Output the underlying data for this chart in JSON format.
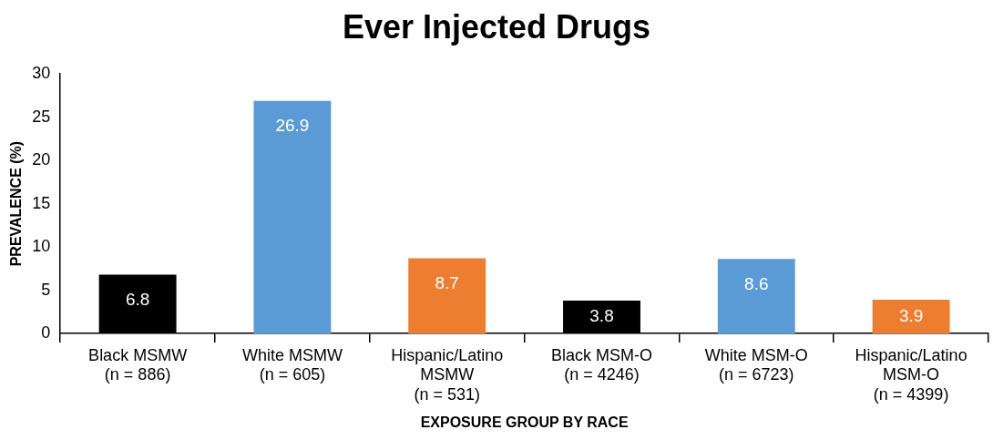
{
  "chart_data": {
    "type": "bar",
    "title": "Ever Injected Drugs",
    "xlabel": "EXPOSURE GROUP BY RACE",
    "ylabel": "PREVALENCE (%)",
    "categories": [
      "Black MSMW\n(n = 886)",
      "White MSMW\n(n = 605)",
      "Hispanic/Latino\nMSMW\n(n = 531)",
      "Black MSM-O\n(n = 4246)",
      "White MSM-O\n(n = 6723)",
      "Hispanic/Latino\nMSM-O\n(n = 4399)"
    ],
    "values": [
      6.8,
      26.9,
      8.7,
      3.8,
      8.6,
      3.9
    ],
    "colors": [
      "#000000",
      "#5b9bd5",
      "#ed7d31",
      "#000000",
      "#5b9bd5",
      "#ed7d31"
    ],
    "ylim": [
      0,
      30
    ],
    "yticks": [
      0,
      5,
      10,
      15,
      20,
      25,
      30
    ],
    "data_labels": true
  }
}
